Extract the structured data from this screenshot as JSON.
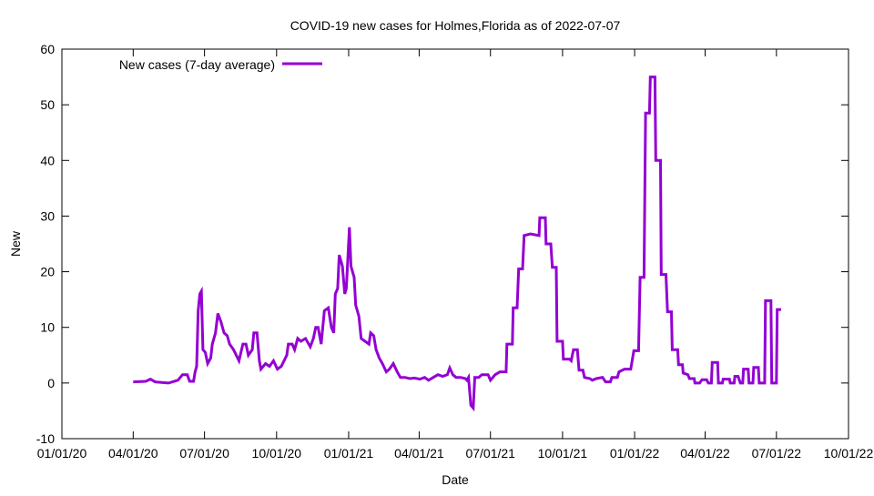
{
  "chart_data": {
    "type": "line",
    "title": "COVID-19 new cases for Holmes,Florida as of 2022-07-07",
    "xlabel": "Date",
    "ylabel": "New",
    "ylim": [
      -10,
      60
    ],
    "yticks": [
      -10,
      0,
      10,
      20,
      30,
      40,
      50,
      60
    ],
    "xlim": [
      "2020-01-01",
      "2022-10-01"
    ],
    "xticks": [
      {
        "date": "2020-01-01",
        "label": "01/01/20"
      },
      {
        "date": "2020-04-01",
        "label": "04/01/20"
      },
      {
        "date": "2020-07-01",
        "label": "07/01/20"
      },
      {
        "date": "2020-10-01",
        "label": "10/01/20"
      },
      {
        "date": "2021-01-01",
        "label": "01/01/21"
      },
      {
        "date": "2021-04-01",
        "label": "04/01/21"
      },
      {
        "date": "2021-07-01",
        "label": "07/01/21"
      },
      {
        "date": "2021-10-01",
        "label": "10/01/21"
      },
      {
        "date": "2022-01-01",
        "label": "01/01/22"
      },
      {
        "date": "2022-04-01",
        "label": "04/01/22"
      },
      {
        "date": "2022-07-01",
        "label": "07/01/22"
      },
      {
        "date": "2022-10-01",
        "label": "10/01/22"
      }
    ],
    "grid": false,
    "legend_position": "top-left",
    "series": [
      {
        "name": "New cases (7-day average)",
        "color": "#9400d3",
        "points": [
          [
            "2020-04-01",
            0.2
          ],
          [
            "2020-04-17",
            0.3
          ],
          [
            "2020-04-23",
            0.7
          ],
          [
            "2020-04-29",
            0.2
          ],
          [
            "2020-05-16",
            0
          ],
          [
            "2020-05-28",
            0.5
          ],
          [
            "2020-06-03",
            1.5
          ],
          [
            "2020-06-09",
            1.5
          ],
          [
            "2020-06-12",
            0.3
          ],
          [
            "2020-06-17",
            0.3
          ],
          [
            "2020-06-19",
            2
          ],
          [
            "2020-06-21",
            3
          ],
          [
            "2020-06-23",
            13
          ],
          [
            "2020-06-25",
            16
          ],
          [
            "2020-06-27",
            16.5
          ],
          [
            "2020-06-29",
            6
          ],
          [
            "2020-07-02",
            5.5
          ],
          [
            "2020-07-05",
            3.5
          ],
          [
            "2020-07-09",
            4.5
          ],
          [
            "2020-07-11",
            7
          ],
          [
            "2020-07-15",
            9
          ],
          [
            "2020-07-18",
            12.5
          ],
          [
            "2020-07-22",
            11
          ],
          [
            "2020-07-26",
            9
          ],
          [
            "2020-07-30",
            8.5
          ],
          [
            "2020-08-02",
            7
          ],
          [
            "2020-08-07",
            6
          ],
          [
            "2020-08-14",
            4
          ],
          [
            "2020-08-19",
            7
          ],
          [
            "2020-08-23",
            7
          ],
          [
            "2020-08-26",
            5
          ],
          [
            "2020-08-31",
            6
          ],
          [
            "2020-09-02",
            9
          ],
          [
            "2020-09-06",
            9
          ],
          [
            "2020-09-09",
            4
          ],
          [
            "2020-09-11",
            2.5
          ],
          [
            "2020-09-17",
            3.5
          ],
          [
            "2020-09-22",
            3
          ],
          [
            "2020-09-27",
            4
          ],
          [
            "2020-10-02",
            2.5
          ],
          [
            "2020-10-07",
            3
          ],
          [
            "2020-10-14",
            5
          ],
          [
            "2020-10-16",
            7
          ],
          [
            "2020-10-21",
            7
          ],
          [
            "2020-10-24",
            6
          ],
          [
            "2020-10-28",
            8
          ],
          [
            "2020-11-01",
            7.5
          ],
          [
            "2020-11-07",
            8
          ],
          [
            "2020-11-13",
            6.5
          ],
          [
            "2020-11-17",
            8
          ],
          [
            "2020-11-20",
            10
          ],
          [
            "2020-11-23",
            10
          ],
          [
            "2020-11-27",
            7
          ],
          [
            "2020-12-01",
            13
          ],
          [
            "2020-12-06",
            13.5
          ],
          [
            "2020-12-10",
            10
          ],
          [
            "2020-12-13",
            9
          ],
          [
            "2020-12-15",
            16
          ],
          [
            "2020-12-18",
            17
          ],
          [
            "2020-12-20",
            23
          ],
          [
            "2020-12-24",
            21
          ],
          [
            "2020-12-27",
            16
          ],
          [
            "2020-12-29",
            17
          ],
          [
            "2021-01-02",
            28
          ],
          [
            "2021-01-04",
            21
          ],
          [
            "2021-01-08",
            19
          ],
          [
            "2021-01-10",
            14
          ],
          [
            "2021-01-14",
            12
          ],
          [
            "2021-01-17",
            8
          ],
          [
            "2021-01-22",
            7.5
          ],
          [
            "2021-01-27",
            7
          ],
          [
            "2021-01-29",
            9
          ],
          [
            "2021-02-02",
            8.5
          ],
          [
            "2021-02-05",
            6
          ],
          [
            "2021-02-09",
            4.5
          ],
          [
            "2021-02-13",
            3.5
          ],
          [
            "2021-02-18",
            2
          ],
          [
            "2021-02-22",
            2.5
          ],
          [
            "2021-02-27",
            3.5
          ],
          [
            "2021-03-04",
            2
          ],
          [
            "2021-03-08",
            1
          ],
          [
            "2021-03-14",
            1
          ],
          [
            "2021-03-20",
            0.8
          ],
          [
            "2021-03-26",
            0.9
          ],
          [
            "2021-04-02",
            0.7
          ],
          [
            "2021-04-08",
            1
          ],
          [
            "2021-04-13",
            0.5
          ],
          [
            "2021-04-19",
            1
          ],
          [
            "2021-04-25",
            1.5
          ],
          [
            "2021-05-01",
            1.2
          ],
          [
            "2021-05-07",
            1.5
          ],
          [
            "2021-05-10",
            2.7
          ],
          [
            "2021-05-14",
            1.5
          ],
          [
            "2021-05-18",
            1
          ],
          [
            "2021-05-24",
            1
          ],
          [
            "2021-05-30",
            0.8
          ],
          [
            "2021-06-01",
            0.5
          ],
          [
            "2021-06-03",
            1
          ],
          [
            "2021-06-06",
            -4
          ],
          [
            "2021-06-09",
            -4.5
          ],
          [
            "2021-06-11",
            1
          ],
          [
            "2021-06-16",
            1
          ],
          [
            "2021-06-20",
            1.5
          ],
          [
            "2021-06-28",
            1.5
          ],
          [
            "2021-07-01",
            0.5
          ],
          [
            "2021-07-07",
            1.5
          ],
          [
            "2021-07-13",
            2
          ],
          [
            "2021-07-21",
            2
          ],
          [
            "2021-07-22",
            7
          ],
          [
            "2021-07-29",
            7
          ],
          [
            "2021-07-30",
            13.5
          ],
          [
            "2021-08-04",
            13.5
          ],
          [
            "2021-08-06",
            20.5
          ],
          [
            "2021-08-11",
            20.5
          ],
          [
            "2021-08-13",
            26.5
          ],
          [
            "2021-08-21",
            26.8
          ],
          [
            "2021-09-01",
            26.5
          ],
          [
            "2021-09-02",
            29.7
          ],
          [
            "2021-09-09",
            29.7
          ],
          [
            "2021-09-10",
            25
          ],
          [
            "2021-09-16",
            25
          ],
          [
            "2021-09-18",
            20.8
          ],
          [
            "2021-09-23",
            20.8
          ],
          [
            "2021-09-24",
            7.5
          ],
          [
            "2021-10-01",
            7.5
          ],
          [
            "2021-10-02",
            4.3
          ],
          [
            "2021-10-10",
            4.3
          ],
          [
            "2021-10-12",
            4
          ],
          [
            "2021-10-15",
            6
          ],
          [
            "2021-10-20",
            6
          ],
          [
            "2021-10-22",
            2.3
          ],
          [
            "2021-10-27",
            2.3
          ],
          [
            "2021-10-29",
            1
          ],
          [
            "2021-11-05",
            0.8
          ],
          [
            "2021-11-08",
            0.5
          ],
          [
            "2021-11-13",
            0.8
          ],
          [
            "2021-11-21",
            1
          ],
          [
            "2021-11-25",
            0.2
          ],
          [
            "2021-12-01",
            0.2
          ],
          [
            "2021-12-03",
            1
          ],
          [
            "2021-12-10",
            1
          ],
          [
            "2021-12-12",
            2
          ],
          [
            "2021-12-19",
            2.5
          ],
          [
            "2021-12-27",
            2.5
          ],
          [
            "2021-12-31",
            5.8
          ],
          [
            "2022-01-06",
            5.8
          ],
          [
            "2022-01-08",
            19
          ],
          [
            "2022-01-13",
            19
          ],
          [
            "2022-01-15",
            48.5
          ],
          [
            "2022-01-20",
            48.5
          ],
          [
            "2022-01-21",
            55
          ],
          [
            "2022-01-27",
            55
          ],
          [
            "2022-01-28",
            40
          ],
          [
            "2022-02-03",
            40
          ],
          [
            "2022-02-04",
            19.5
          ],
          [
            "2022-02-10",
            19.5
          ],
          [
            "2022-02-12",
            12.8
          ],
          [
            "2022-02-17",
            12.8
          ],
          [
            "2022-02-18",
            6
          ],
          [
            "2022-02-25",
            6
          ],
          [
            "2022-02-26",
            3.3
          ],
          [
            "2022-03-03",
            3.3
          ],
          [
            "2022-03-04",
            1.8
          ],
          [
            "2022-03-10",
            1.5
          ],
          [
            "2022-03-12",
            0.8
          ],
          [
            "2022-03-18",
            0.8
          ],
          [
            "2022-03-19",
            0
          ],
          [
            "2022-03-25",
            0
          ],
          [
            "2022-03-28",
            0.6
          ],
          [
            "2022-04-03",
            0.6
          ],
          [
            "2022-04-05",
            0
          ],
          [
            "2022-04-09",
            0
          ],
          [
            "2022-04-10",
            3.7
          ],
          [
            "2022-04-17",
            3.7
          ],
          [
            "2022-04-18",
            0
          ],
          [
            "2022-04-23",
            0
          ],
          [
            "2022-04-24",
            0.7
          ],
          [
            "2022-05-02",
            0.7
          ],
          [
            "2022-05-03",
            0
          ],
          [
            "2022-05-08",
            0
          ],
          [
            "2022-05-09",
            1.2
          ],
          [
            "2022-05-13",
            1.2
          ],
          [
            "2022-05-16",
            0
          ],
          [
            "2022-05-19",
            0
          ],
          [
            "2022-05-20",
            2.5
          ],
          [
            "2022-05-26",
            2.5
          ],
          [
            "2022-05-27",
            0
          ],
          [
            "2022-06-01",
            0
          ],
          [
            "2022-06-02",
            2.8
          ],
          [
            "2022-06-08",
            2.8
          ],
          [
            "2022-06-09",
            0
          ],
          [
            "2022-06-16",
            0
          ],
          [
            "2022-06-17",
            14.8
          ],
          [
            "2022-06-24",
            14.8
          ],
          [
            "2022-06-25",
            0
          ],
          [
            "2022-07-01",
            0
          ],
          [
            "2022-07-02",
            13.2
          ],
          [
            "2022-07-07",
            13.2
          ]
        ]
      }
    ]
  }
}
